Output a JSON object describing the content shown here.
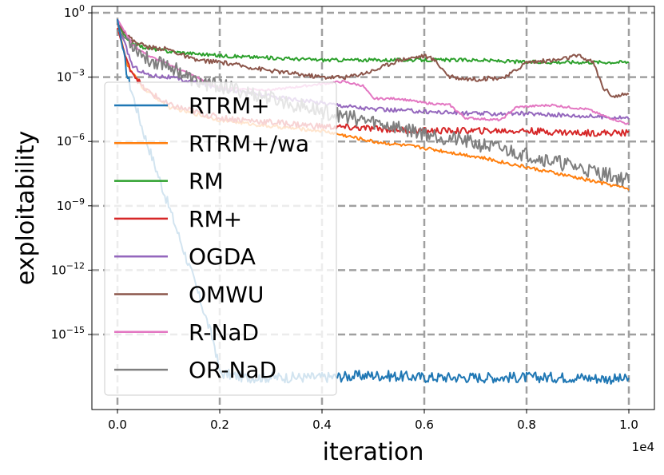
{
  "chart_data": {
    "type": "line",
    "xlabel": "iteration",
    "ylabel": "exploitability",
    "x_offset_label": "1e4",
    "xlim": [
      -0.05,
      1.05
    ],
    "ylim_log10": [
      -18.5,
      0.3
    ],
    "x_ticks": [
      0.0,
      0.2,
      0.4,
      0.6,
      0.8,
      1.0
    ],
    "x_tick_labels": [
      "0.0",
      "0.2",
      "0.4",
      "0.6",
      "0.8",
      "1.0"
    ],
    "y_ticks_exp": [
      0,
      -3,
      -6,
      -9,
      -12,
      -15
    ],
    "y_tick_labels": [
      "10^0",
      "10^-3",
      "10^-6",
      "10^-9",
      "10^-12",
      "10^-15"
    ],
    "grid": true,
    "legend_position": "left",
    "series": [
      {
        "name": "RTRM+",
        "color": "#1f77b4",
        "points": [
          [
            0.0,
            -0.3
          ],
          [
            0.02,
            -3.0
          ],
          [
            0.05,
            -5.5
          ],
          [
            0.1,
            -9.0
          ],
          [
            0.15,
            -12.5
          ],
          [
            0.19,
            -15.5
          ],
          [
            0.2,
            -16.8
          ],
          [
            0.25,
            -17.0
          ],
          [
            0.3,
            -17.0
          ],
          [
            0.4,
            -17.0
          ],
          [
            0.5,
            -16.9
          ],
          [
            0.6,
            -17.0
          ],
          [
            0.7,
            -17.0
          ],
          [
            0.8,
            -17.0
          ],
          [
            0.9,
            -17.0
          ],
          [
            1.0,
            -17.1
          ]
        ],
        "noise": 0.25
      },
      {
        "name": "RTRM+/wa",
        "color": "#ff7f0e",
        "points": [
          [
            0.0,
            -0.5
          ],
          [
            0.02,
            -2.5
          ],
          [
            0.05,
            -3.5
          ],
          [
            0.1,
            -4.4
          ],
          [
            0.2,
            -5.0
          ],
          [
            0.3,
            -5.3
          ],
          [
            0.4,
            -5.5
          ],
          [
            0.5,
            -6.0
          ],
          [
            0.6,
            -6.3
          ],
          [
            0.7,
            -6.7
          ],
          [
            0.8,
            -7.2
          ],
          [
            0.9,
            -7.7
          ],
          [
            1.0,
            -8.2
          ]
        ],
        "noise": 0.08
      },
      {
        "name": "RM",
        "color": "#2ca02c",
        "points": [
          [
            0.0,
            -0.5
          ],
          [
            0.02,
            -1.3
          ],
          [
            0.05,
            -1.6
          ],
          [
            0.1,
            -1.8
          ],
          [
            0.2,
            -2.0
          ],
          [
            0.3,
            -2.1
          ],
          [
            0.4,
            -2.2
          ],
          [
            0.5,
            -2.2
          ],
          [
            0.6,
            -2.2
          ],
          [
            0.7,
            -2.2
          ],
          [
            0.8,
            -2.3
          ],
          [
            0.9,
            -2.3
          ],
          [
            1.0,
            -2.3
          ]
        ],
        "noise": 0.08
      },
      {
        "name": "RM+",
        "color": "#d62728",
        "points": [
          [
            0.0,
            -0.7
          ],
          [
            0.02,
            -2.4
          ],
          [
            0.05,
            -3.5
          ],
          [
            0.1,
            -4.3
          ],
          [
            0.2,
            -4.9
          ],
          [
            0.3,
            -5.1
          ],
          [
            0.4,
            -5.3
          ],
          [
            0.5,
            -5.4
          ],
          [
            0.6,
            -5.5
          ],
          [
            0.7,
            -5.5
          ],
          [
            0.8,
            -5.5
          ],
          [
            0.9,
            -5.6
          ],
          [
            1.0,
            -5.6
          ]
        ],
        "noise": 0.15
      },
      {
        "name": "OGDA",
        "color": "#9467bd",
        "points": [
          [
            0.0,
            -0.5
          ],
          [
            0.03,
            -2.5
          ],
          [
            0.06,
            -2.9
          ],
          [
            0.1,
            -3.0
          ],
          [
            0.2,
            -3.5
          ],
          [
            0.3,
            -3.9
          ],
          [
            0.4,
            -4.2
          ],
          [
            0.5,
            -4.5
          ],
          [
            0.6,
            -4.6
          ],
          [
            0.7,
            -4.7
          ],
          [
            0.8,
            -4.7
          ],
          [
            0.9,
            -4.8
          ],
          [
            1.0,
            -4.9
          ]
        ],
        "noise": 0.1
      },
      {
        "name": "OMWU",
        "color": "#8c564b",
        "points": [
          [
            0.0,
            -0.5
          ],
          [
            0.03,
            -1.3
          ],
          [
            0.06,
            -1.6
          ],
          [
            0.1,
            -1.7
          ],
          [
            0.15,
            -2.2
          ],
          [
            0.2,
            -2.3
          ],
          [
            0.3,
            -2.7
          ],
          [
            0.4,
            -3.0
          ],
          [
            0.45,
            -3.0
          ],
          [
            0.5,
            -2.7
          ],
          [
            0.55,
            -2.2
          ],
          [
            0.6,
            -2.0
          ],
          [
            0.62,
            -2.2
          ],
          [
            0.65,
            -3.0
          ],
          [
            0.7,
            -3.1
          ],
          [
            0.76,
            -3.0
          ],
          [
            0.8,
            -2.3
          ],
          [
            0.86,
            -2.2
          ],
          [
            0.9,
            -2.0
          ],
          [
            0.93,
            -2.3
          ],
          [
            0.95,
            -3.5
          ],
          [
            0.97,
            -3.9
          ],
          [
            1.0,
            -3.8
          ]
        ],
        "noise": 0.1
      },
      {
        "name": "R-NaD",
        "color": "#e377c2",
        "points": [
          [
            0.0,
            -0.3
          ],
          [
            0.03,
            -1.5
          ],
          [
            0.06,
            -2.0
          ],
          [
            0.1,
            -2.4
          ],
          [
            0.2,
            -3.5
          ],
          [
            0.3,
            -3.6
          ],
          [
            0.44,
            -3.2
          ],
          [
            0.48,
            -3.4
          ],
          [
            0.5,
            -4.0
          ],
          [
            0.55,
            -4.0
          ],
          [
            0.6,
            -4.2
          ],
          [
            0.65,
            -4.3
          ],
          [
            0.68,
            -4.9
          ],
          [
            0.75,
            -5.0
          ],
          [
            0.78,
            -4.4
          ],
          [
            0.85,
            -4.3
          ],
          [
            0.88,
            -4.4
          ],
          [
            0.92,
            -4.5
          ],
          [
            0.95,
            -4.8
          ],
          [
            1.0,
            -5.2
          ]
        ],
        "noise": 0.05
      },
      {
        "name": "OR-NaD",
        "color": "#7f7f7f",
        "points": [
          [
            0.0,
            -0.8
          ],
          [
            0.03,
            -1.5
          ],
          [
            0.06,
            -2.2
          ],
          [
            0.1,
            -2.4
          ],
          [
            0.15,
            -3.2
          ],
          [
            0.2,
            -3.4
          ],
          [
            0.3,
            -4.0
          ],
          [
            0.4,
            -4.6
          ],
          [
            0.5,
            -5.1
          ],
          [
            0.6,
            -5.6
          ],
          [
            0.7,
            -6.1
          ],
          [
            0.8,
            -6.6
          ],
          [
            0.9,
            -7.2
          ],
          [
            1.0,
            -7.8
          ]
        ],
        "noise": 0.35
      }
    ]
  }
}
